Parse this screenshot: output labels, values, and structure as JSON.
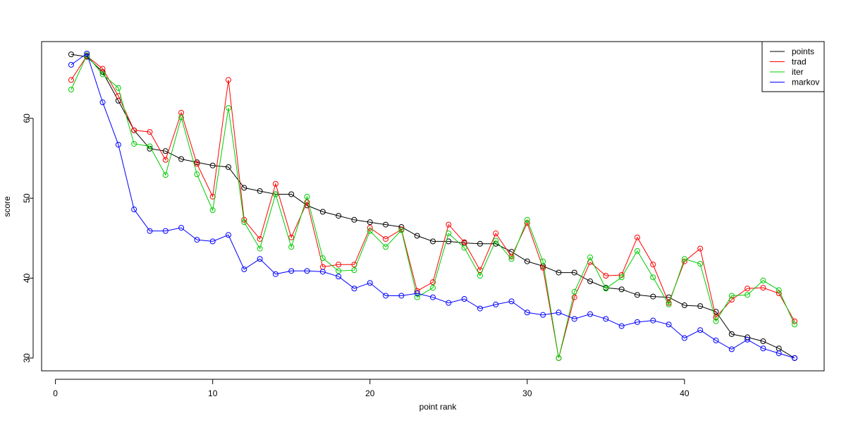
{
  "chart_data": {
    "type": "line",
    "title": "",
    "xlabel": "point rank",
    "ylabel": "score",
    "xlim": [
      -0.88,
      48.88
    ],
    "ylim": [
      28.4,
      69.6
    ],
    "xticks": [
      0,
      10,
      20,
      30,
      40
    ],
    "yticks": [
      30,
      40,
      50,
      60
    ],
    "grid": false,
    "legend_position": "top-right",
    "markers": "open-circle",
    "x": [
      1,
      2,
      3,
      4,
      5,
      6,
      7,
      8,
      9,
      10,
      11,
      12,
      13,
      14,
      15,
      16,
      17,
      18,
      19,
      20,
      21,
      22,
      23,
      24,
      25,
      26,
      27,
      28,
      29,
      30,
      31,
      32,
      33,
      34,
      35,
      36,
      37,
      38,
      39,
      40,
      41,
      42,
      43,
      44,
      45,
      46,
      47
    ],
    "series": [
      {
        "name": "points",
        "color": "#000000",
        "values": [
          68.0,
          67.7,
          65.8,
          62.2,
          58.5,
          56.2,
          55.9,
          54.9,
          54.5,
          54.1,
          53.9,
          51.3,
          50.9,
          50.5,
          50.5,
          49.1,
          48.3,
          47.8,
          47.3,
          47.0,
          46.7,
          46.4,
          45.3,
          44.6,
          44.6,
          44.4,
          44.3,
          44.3,
          43.3,
          42.1,
          41.5,
          40.7,
          40.7,
          39.6,
          38.8,
          38.6,
          37.9,
          37.7,
          37.6,
          36.6,
          36.5,
          35.8,
          33.0,
          32.6,
          32.1,
          31.2,
          30.0
        ]
      },
      {
        "name": "trad",
        "color": "#ff0000",
        "values": [
          64.8,
          67.8,
          66.2,
          62.8,
          58.5,
          58.3,
          54.8,
          60.7,
          54.3,
          50.2,
          64.8,
          47.3,
          44.9,
          51.8,
          45.1,
          49.5,
          41.4,
          41.7,
          41.7,
          46.3,
          44.9,
          46.1,
          38.4,
          39.5,
          46.7,
          44.5,
          41.0,
          45.6,
          42.7,
          46.9,
          41.3,
          30.0,
          37.6,
          42.0,
          40.3,
          40.4,
          45.1,
          41.7,
          36.9,
          42.1,
          43.7,
          35.1,
          37.3,
          38.7,
          38.8,
          38.1,
          34.6
        ]
      },
      {
        "name": "iter",
        "color": "#00cc00",
        "values": [
          63.6,
          67.9,
          65.5,
          63.8,
          56.8,
          56.5,
          52.9,
          60.1,
          53.0,
          48.5,
          61.3,
          47.0,
          43.7,
          50.5,
          43.9,
          50.2,
          42.5,
          40.9,
          41.0,
          45.9,
          43.9,
          46.0,
          37.6,
          38.8,
          45.6,
          43.8,
          40.3,
          44.7,
          42.4,
          47.3,
          42.1,
          30.0,
          38.3,
          42.6,
          38.7,
          40.1,
          43.4,
          40.1,
          36.7,
          42.4,
          41.8,
          34.6,
          37.8,
          37.9,
          39.7,
          38.5,
          34.2
        ]
      },
      {
        "name": "markov",
        "color": "#0000ff",
        "values": [
          66.7,
          68.1,
          62.0,
          56.7,
          48.6,
          45.9,
          45.9,
          46.3,
          44.8,
          44.6,
          45.4,
          41.1,
          42.4,
          40.5,
          40.9,
          40.9,
          40.8,
          40.2,
          38.7,
          39.4,
          37.8,
          37.8,
          38.1,
          37.6,
          36.9,
          37.4,
          36.2,
          36.7,
          37.1,
          35.7,
          35.4,
          35.7,
          34.9,
          35.5,
          34.9,
          34.0,
          34.5,
          34.7,
          34.2,
          32.5,
          33.5,
          32.2,
          31.1,
          32.3,
          31.2,
          30.6,
          30.0
        ]
      }
    ]
  }
}
